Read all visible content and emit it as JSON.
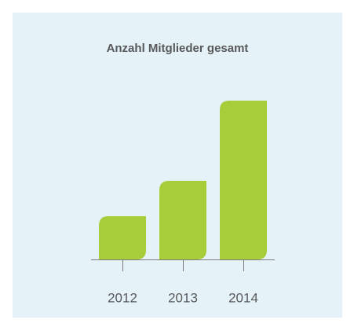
{
  "chart_data": {
    "type": "bar",
    "title": "Anzahl Mitglieder gesamt",
    "categories": [
      "2012",
      "2013",
      "2014"
    ],
    "values": [
      55,
      100,
      202
    ],
    "color": "#a8cd3a"
  }
}
